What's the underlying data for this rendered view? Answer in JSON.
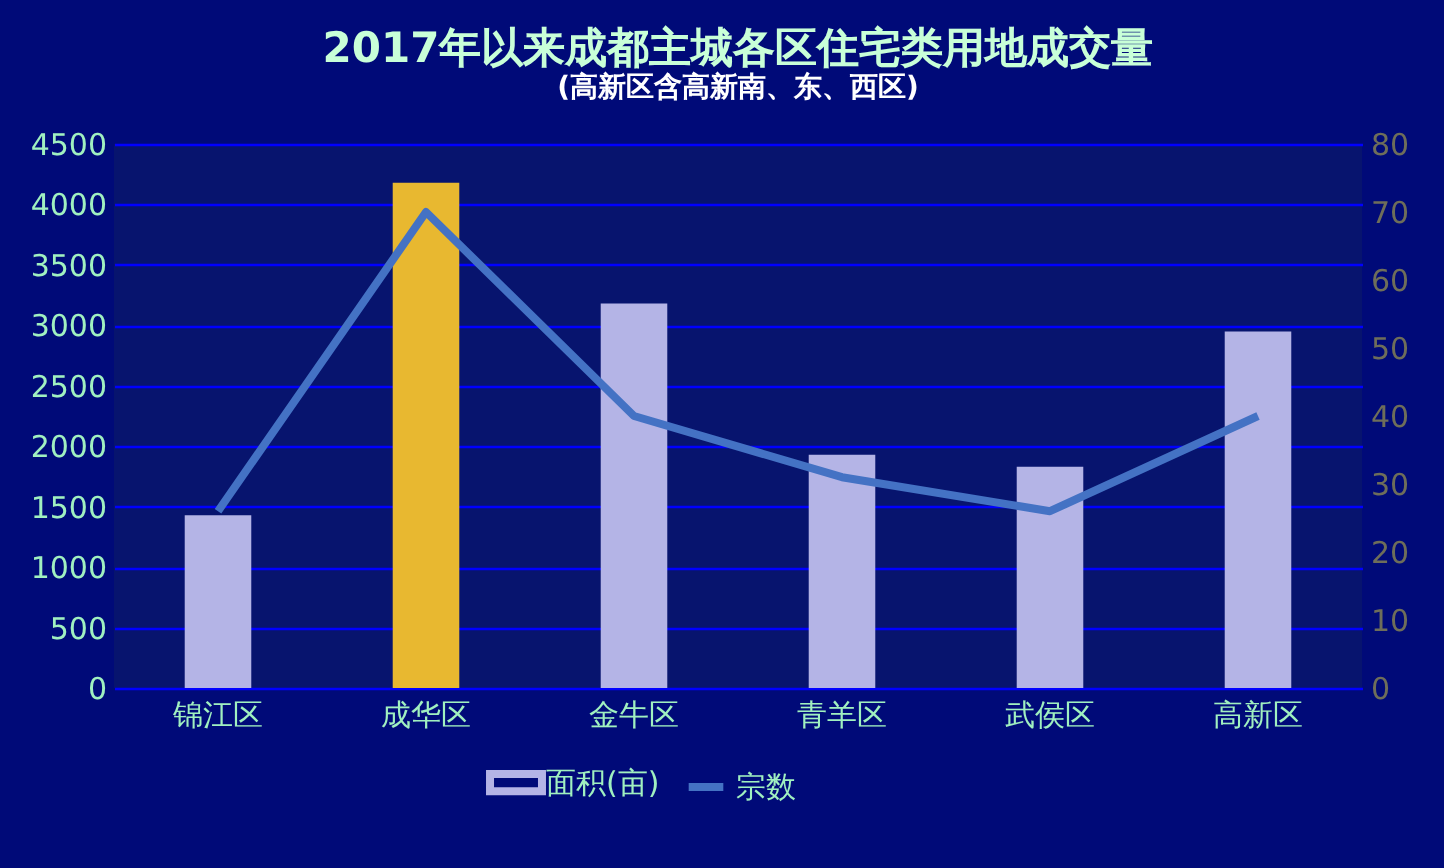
{
  "chart_data": {
    "type": "bar",
    "title": "2017年以来成都主城各区住宅类用地成交量",
    "subtitle": "(高新区含高新南、东、西区)",
    "categories": [
      "锦江区",
      "成华区",
      "金牛区",
      "青羊区",
      "武侯区",
      "高新区"
    ],
    "series": [
      {
        "name": "面积(亩)",
        "color": "#b4b4e6",
        "colors": [
          "#b4b4e6",
          "#e8b830",
          "#b4b4e6",
          "#b4b4e6",
          "#b4b4e6",
          "#b4b4e6"
        ],
        "values": [
          1430,
          4180,
          3180,
          1930,
          1830,
          2950
        ]
      },
      {
        "name": "宗数",
        "type": "line",
        "axis": "y2",
        "color": "#4472c4",
        "values": [
          26,
          70,
          40,
          31,
          26,
          40
        ]
      }
    ],
    "ylim": [
      0,
      4500
    ],
    "yticks": [
      0,
      500,
      1000,
      1500,
      2000,
      2500,
      3000,
      3500,
      4000,
      4500
    ],
    "y2lim": [
      0,
      80
    ],
    "y2ticks": [
      0,
      10,
      20,
      30,
      40,
      50,
      60,
      70,
      80
    ],
    "grid": "y",
    "legend": "bottom"
  }
}
